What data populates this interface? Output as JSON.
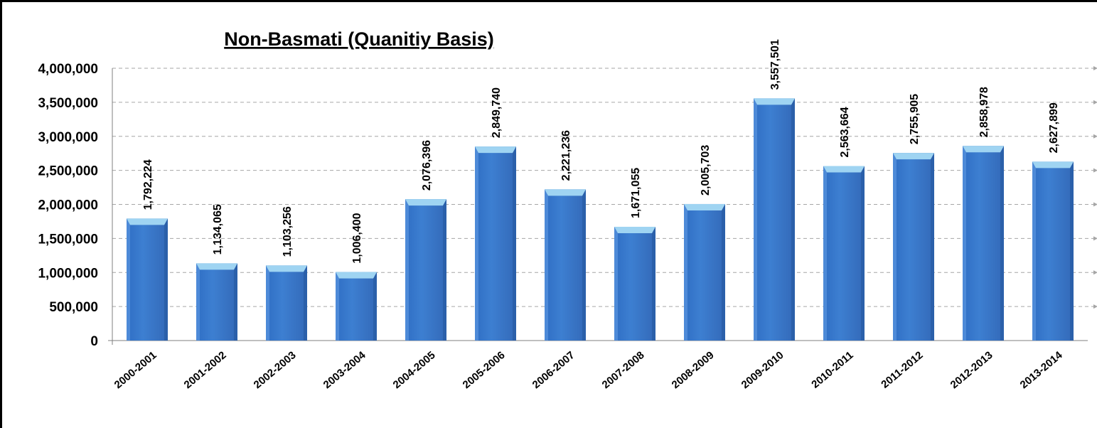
{
  "chart_data": {
    "type": "bar",
    "title": "Non-Basmati (Quanitiy Basis)",
    "xlabel": "",
    "ylabel": "",
    "categories": [
      "2000-2001",
      "2001-2002",
      "2002-2003",
      "2003-2004",
      "2004-2005",
      "2005-2006",
      "2006-2007",
      "2007-2008",
      "2008-2009",
      "2009-2010",
      "2010-2011",
      "2011-2012",
      "2012-2013",
      "2013-2014"
    ],
    "values": [
      1792224,
      1134065,
      1103256,
      1006400,
      2076396,
      2849740,
      2221236,
      1671055,
      2005703,
      3557501,
      2563664,
      2755905,
      2858978,
      2627899
    ],
    "value_labels": [
      "1,792,224",
      "1,134,065",
      "1,103,256",
      "1,006,400",
      "2,076,396",
      "2,849,740",
      "2,221,236",
      "1,671,055",
      "2,005,703",
      "3,557,501",
      "2,563,664",
      "2,755,905",
      "2,858,978",
      "2,627,899"
    ],
    "ylim": [
      0,
      4000000
    ],
    "yticks": [
      0,
      500000,
      1000000,
      1500000,
      2000000,
      2500000,
      3000000,
      3500000,
      4000000
    ],
    "ytick_labels": [
      "0",
      "500,000",
      "1,000,000",
      "1,500,000",
      "2,000,000",
      "2,500,000",
      "3,000,000",
      "3,500,000",
      "4,000,000"
    ],
    "grid": true,
    "legend": "none",
    "colors": {
      "bar": "#3d7fd1",
      "bar_top": "#9fd4f2",
      "bar_side": "#2a5fa8",
      "grid": "#a6a6a6"
    }
  }
}
